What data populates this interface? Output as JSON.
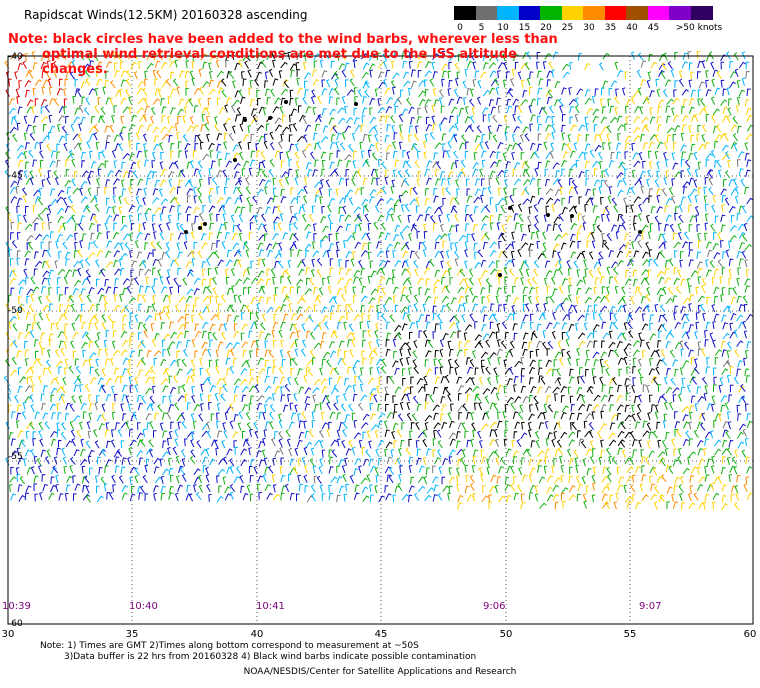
{
  "title": "Rapidscat Winds(12.5KM) 20160328 ascending",
  "note_line1": "Note: black circles have been added to the wind barbs, wherever less than",
  "note_line2": "optimal wind retrieval conditions are met due to the ISS altitude changes.",
  "scale": {
    "labels": [
      "0",
      "5",
      "10",
      "15",
      "20",
      "25",
      "30",
      "35",
      "40",
      "45",
      ">50 knots"
    ],
    "colors": [
      "#000000",
      "#707070",
      "#00b4ff",
      "#0000c8",
      "#00b400",
      "#ffd200",
      "#ff8c00",
      "#ff0000",
      "#a05000",
      "#ff00ff",
      "#8000c8",
      "#300060"
    ]
  },
  "lat_labels": [
    "-40",
    "-45",
    "-50",
    "-55",
    "-60"
  ],
  "lon_labels": [
    "30",
    "35",
    "40",
    "45",
    "50",
    "55",
    "60"
  ],
  "time_labels": [
    "10:39",
    "10:40",
    "10:41",
    "9:06",
    "9:07"
  ],
  "footnote_line1": "Note: 1) Times are GMT 2)Times along bottom correspond to measurement at ~50S",
  "footnote_line2": "3)Data buffer is 22 hrs from 20160328 4) Black wind barbs indicate possible contamination",
  "credit": "NOAA/NESDIS/Center for Satellite Applications and Research"
}
